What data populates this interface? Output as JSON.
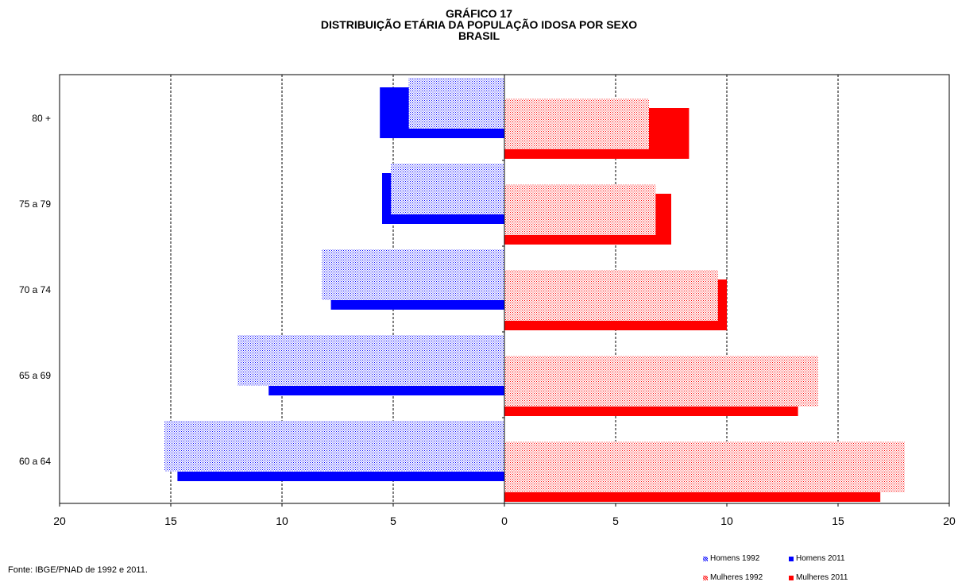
{
  "title_lines": [
    "GRÁFICO 17",
    "DISTRIBUIÇÃO ETÁRIA DA POPULAÇÃO IDOSA POR SEXO",
    "BRASIL"
  ],
  "source": "Fonte: IBGE/PNAD  de 1992 e 2011.",
  "colors": {
    "homens": "#0000ff",
    "mulheres": "#ff0000"
  },
  "chart_data": {
    "type": "bar",
    "orientation": "horizontal",
    "categories": [
      "60 a 64",
      "65 a 69",
      "70 a 74",
      "75 a 79",
      "80 +"
    ],
    "series": [
      {
        "name": "Homens 1992",
        "side": "left",
        "pattern": "dotted",
        "values": [
          15.3,
          12.0,
          8.2,
          5.1,
          4.3
        ]
      },
      {
        "name": "Homens 2011",
        "side": "left",
        "pattern": "solid",
        "values": [
          14.7,
          10.6,
          7.8,
          5.5,
          5.6
        ]
      },
      {
        "name": "Mulheres 1992",
        "side": "right",
        "pattern": "dotted",
        "values": [
          18.0,
          14.1,
          9.6,
          6.8,
          6.5
        ]
      },
      {
        "name": "Mulheres 2011",
        "side": "right",
        "pattern": "solid",
        "values": [
          16.9,
          13.2,
          10.0,
          7.5,
          8.3
        ]
      }
    ],
    "x_ticks": [
      "20",
      "15",
      "10",
      "5",
      "0",
      "5",
      "10",
      "15",
      "20"
    ],
    "xlim": [
      -20,
      20
    ],
    "grid": "vertical dashed",
    "legend_position": "bottom-right"
  }
}
